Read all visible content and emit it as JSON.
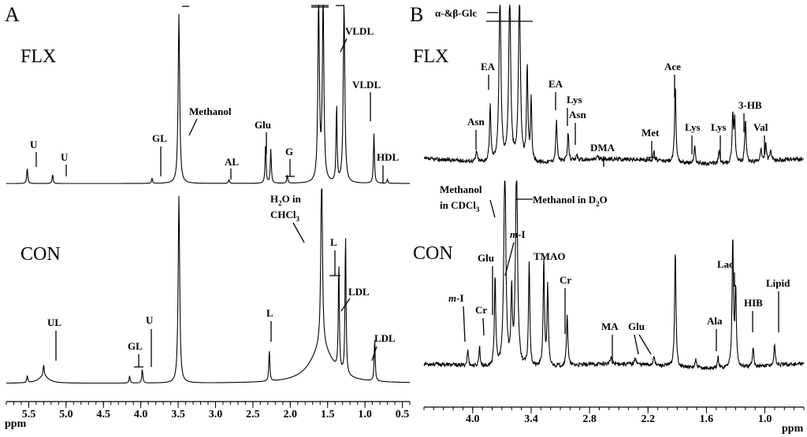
{
  "chart_data": [
    {
      "panel": "A",
      "type": "line",
      "xlabel": "ppm",
      "x_reversed": true,
      "xlim": [
        5.8,
        0.4
      ],
      "ticks": [
        "5.5",
        "5.0",
        "4.5",
        "4.0",
        "3.5",
        "3.0",
        "2.5",
        "2.0",
        "1.5",
        "1.0",
        "0.5"
      ],
      "tick_values": [
        5.5,
        5.0,
        4.5,
        4.0,
        3.5,
        3.0,
        2.5,
        2.0,
        1.5,
        1.0,
        0.5
      ],
      "series": [
        {
          "name": "FLX",
          "baseline": 0.03,
          "peaks": [
            {
              "label": "U",
              "ppm": 5.52,
              "height": 0.12
            },
            {
              "label": "U",
              "ppm": 5.18,
              "height": 0.07
            },
            {
              "label": "GL",
              "ppm": 3.85,
              "height": 0.04
            },
            {
              "label": "Methanol",
              "ppm": 3.49,
              "height": 1.3
            },
            {
              "label": "AL",
              "ppm": 2.82,
              "height": 0.03
            },
            {
              "label": "Glu",
              "ppm": 2.33,
              "height": 0.3
            },
            {
              "label": "Glu",
              "ppm": 2.26,
              "height": 0.26
            },
            {
              "label": "G",
              "ppm": 2.04,
              "height": 0.06
            },
            {
              "label": "",
              "ppm": 1.62,
              "height": 1.4
            },
            {
              "label": "",
              "ppm": 1.56,
              "height": 1.4
            },
            {
              "label": "",
              "ppm": 1.38,
              "height": 0.6
            },
            {
              "label": "VLDL",
              "ppm": 1.28,
              "height": 1.4
            },
            {
              "label": "VLDL",
              "ppm": 0.88,
              "height": 0.38
            },
            {
              "label": "HDL",
              "ppm": 0.7,
              "height": 0.03
            }
          ],
          "labels": [
            "U",
            "U",
            "GL",
            "Methanol",
            "AL",
            "Glu",
            "G",
            "VLDL",
            "VLDL",
            "HDL"
          ]
        },
        {
          "name": "CON",
          "baseline": 0.05,
          "peaks": [
            {
              "label": "",
              "ppm": 5.52,
              "height": 0.05
            },
            {
              "label": "UL",
              "ppm": 5.3,
              "height": 0.08
            },
            {
              "label": "GL",
              "ppm": 4.15,
              "height": 0.05
            },
            {
              "label": "U",
              "ppm": 3.98,
              "height": 0.1
            },
            {
              "label": "",
              "ppm": 3.49,
              "height": 1.3
            },
            {
              "label": "L",
              "ppm": 2.28,
              "height": 0.22
            },
            {
              "label": "H2O in CHCl3",
              "ppm": 1.58,
              "height": 1.35
            },
            {
              "label": "L",
              "ppm": 1.35,
              "height": 0.75
            },
            {
              "label": "LDL",
              "ppm": 1.26,
              "height": 1.0
            },
            {
              "label": "LDL",
              "ppm": 0.87,
              "height": 0.3
            }
          ],
          "labels": [
            "UL",
            "GL",
            "U",
            "L",
            "L",
            "LDL",
            "LDL",
            "H2O in CHCl3"
          ]
        }
      ]
    },
    {
      "panel": "B",
      "type": "line",
      "xlabel": "ppm",
      "x_reversed": true,
      "xlim": [
        4.5,
        0.6
      ],
      "ticks": [
        "4.0",
        "3.4",
        "2.8",
        "2.2",
        "1.6",
        "1.0"
      ],
      "tick_values": [
        4.0,
        3.4,
        2.8,
        2.2,
        1.6,
        1.0
      ],
      "series": [
        {
          "name": "FLX",
          "noise": 0.06,
          "peaks": [
            {
              "label": "Asn",
              "ppm": 3.96,
              "height": 0.1
            },
            {
              "label": "EA",
              "ppm": 3.82,
              "height": 0.5
            },
            {
              "label": "α-&β-Glc",
              "ppm": 3.72,
              "height": 1.5
            },
            {
              "label": "",
              "ppm": 3.62,
              "height": 1.5
            },
            {
              "label": "",
              "ppm": 3.52,
              "height": 1.5
            },
            {
              "label": "",
              "ppm": 3.44,
              "height": 0.85
            },
            {
              "label": "",
              "ppm": 3.4,
              "height": 0.55
            },
            {
              "label": "EA",
              "ppm": 3.14,
              "height": 0.38
            },
            {
              "label": "Lys",
              "ppm": 3.02,
              "height": 0.25
            },
            {
              "label": "Asn",
              "ppm": 2.93,
              "height": 0.06
            },
            {
              "label": "DMA",
              "ppm": 2.72,
              "height": 0.04
            },
            {
              "label": "Met",
              "ppm": 2.14,
              "height": 0.08
            },
            {
              "label": "Ace",
              "ppm": 1.92,
              "height": 0.7
            },
            {
              "label": "Lys",
              "ppm": 1.72,
              "height": 0.15
            },
            {
              "label": "Lys",
              "ppm": 1.47,
              "height": 0.12
            },
            {
              "label": "",
              "ppm": 1.33,
              "height": 0.42
            },
            {
              "label": "",
              "ppm": 1.31,
              "height": 0.38
            },
            {
              "label": "3-HB",
              "ppm": 1.2,
              "height": 0.4
            },
            {
              "label": "Val",
              "ppm": 1.04,
              "height": 0.12
            },
            {
              "label": "",
              "ppm": 0.99,
              "height": 0.16
            },
            {
              "label": "",
              "ppm": 0.94,
              "height": 0.1
            }
          ],
          "labels": [
            "α-&β-Glc",
            "EA",
            "Asn",
            "EA",
            "Lys",
            "Asn",
            "DMA",
            "Met",
            "Ace",
            "Lys",
            "Lys",
            "3-HB",
            "Val"
          ]
        },
        {
          "name": "CON",
          "noise": 0.05,
          "peaks": [
            {
              "label": "m-I",
              "ppm": 4.05,
              "height": 0.12
            },
            {
              "label": "Cr",
              "ppm": 3.93,
              "height": 0.15
            },
            {
              "label": "Glu",
              "ppm": 3.77,
              "height": 0.7
            },
            {
              "label": "Methanol in CDCl3",
              "ppm": 3.67,
              "height": 1.6
            },
            {
              "label": "Methanol in D2O",
              "ppm": 3.55,
              "height": 1.6
            },
            {
              "label": "m-I",
              "ppm": 3.6,
              "height": 0.55
            },
            {
              "label": "",
              "ppm": 3.42,
              "height": 0.8
            },
            {
              "label": "TMAO",
              "ppm": 3.27,
              "height": 0.8
            },
            {
              "label": "",
              "ppm": 3.23,
              "height": 0.6
            },
            {
              "label": "Cr",
              "ppm": 3.03,
              "height": 0.4
            },
            {
              "label": "MA",
              "ppm": 2.58,
              "height": 0.05
            },
            {
              "label": "Glu",
              "ppm": 2.33,
              "height": 0.06
            },
            {
              "label": "",
              "ppm": 2.14,
              "height": 0.08
            },
            {
              "label": "",
              "ppm": 1.92,
              "height": 0.9
            },
            {
              "label": "",
              "ppm": 1.71,
              "height": 0.06
            },
            {
              "label": "Ala",
              "ppm": 1.48,
              "height": 0.08
            },
            {
              "label": "Lac",
              "ppm": 1.33,
              "height": 1.0
            },
            {
              "label": "",
              "ppm": 1.3,
              "height": 0.6
            },
            {
              "label": "HIB",
              "ppm": 1.12,
              "height": 0.15
            },
            {
              "label": "Lipid",
              "ppm": 0.9,
              "height": 0.16
            }
          ],
          "labels": [
            "m-I",
            "Cr",
            "Glu",
            "Methanol in CDCl3",
            "Methanol in D2O",
            "m-I",
            "TMAO",
            "Cr",
            "MA",
            "Glu",
            "Ala",
            "Lac",
            "HIB",
            "Lipid"
          ]
        }
      ]
    }
  ],
  "panels": {
    "A": {
      "letter": "A",
      "flx_name": "FLX",
      "con_name": "CON",
      "axis_label": "ppm",
      "labels": {
        "U1": "U",
        "U2": "U",
        "GL": "GL",
        "Methanol": "Methanol",
        "AL": "AL",
        "Glu": "Glu",
        "G": "G",
        "VLDL1": "VLDL",
        "VLDL2": "VLDL",
        "HDL": "HDL",
        "UL": "UL",
        "GL2": "GL",
        "U3": "U",
        "L1": "L",
        "L2": "L",
        "LDL1": "LDL",
        "LDL2": "LDL",
        "H2O": "H",
        "H2O_sub": "2",
        "H2O_rest": "O in",
        "CHCl": "CHCl",
        "CHCl_sub": "3"
      }
    },
    "B": {
      "letter": "B",
      "flx_name": "FLX",
      "con_name": "CON",
      "axis_label": "ppm",
      "labels": {
        "Glc": "α-&β-Glc",
        "EA1": "EA",
        "Asn1": "Asn",
        "EA2": "EA",
        "Lys1": "Lys",
        "Asn2": "Asn",
        "DMA": "DMA",
        "Met": "Met",
        "Ace": "Ace",
        "Lys2": "Lys",
        "Lys3": "Lys",
        "HB3": "3-HB",
        "Val": "Val",
        "MethCDCl_1": "Methanol",
        "MethCDCl_2": "in CDCl",
        "MethCDCl_sub": "3",
        "MethD2O": "Methanol in D",
        "MethD2O_sub": "2",
        "MethD2O_end": "O",
        "mI1_m": "m",
        "mI1_rest": "-I",
        "mI2_m": "m",
        "mI2_rest": "-I",
        "Cr1": "Cr",
        "Glu1": "Glu",
        "TMAO": "TMAO",
        "Cr2": "Cr",
        "MA": "MA",
        "Glu2": "Glu",
        "Ala": "Ala",
        "Lac": "Lac",
        "HIB": "HIB",
        "Lipid": "Lipid"
      }
    }
  }
}
